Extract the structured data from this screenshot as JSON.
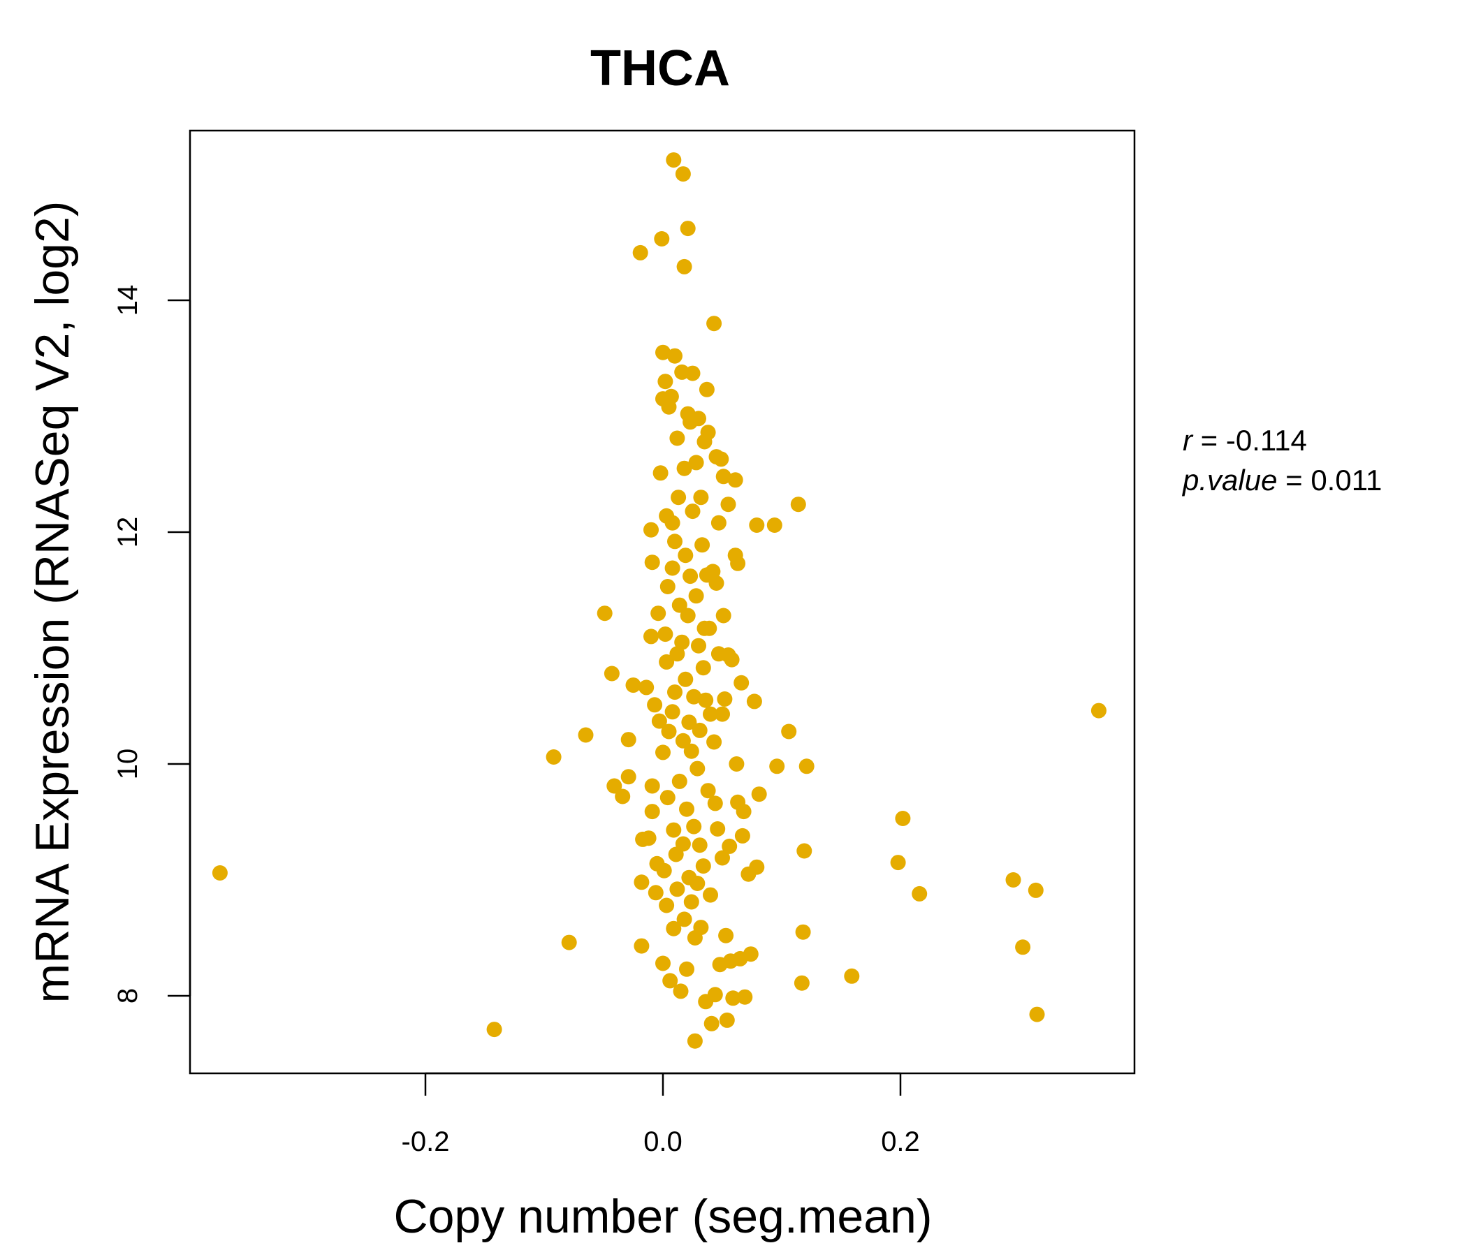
{
  "chart_data": {
    "type": "scatter",
    "title": "THCA",
    "xlabel": "Copy number (seg.mean)",
    "ylabel": "mRNA Expression (RNASeq V2, log2)",
    "xlim": [
      -0.4,
      0.4
    ],
    "ylim": [
      7.35,
      15.5
    ],
    "xticks": [
      "-0.2",
      "0.0",
      "0.2"
    ],
    "yticks": [
      "8",
      "10",
      "12",
      "14"
    ],
    "stats": {
      "r_label": "r",
      "r_value": "-0.114",
      "p_label": "p.value",
      "p_value": "0.011"
    },
    "colors": {
      "points": "#E5AC00",
      "title": "#E5AC00",
      "axis": "#000000"
    },
    "grid": false,
    "legend": "none",
    "points": [
      [
        -0.373,
        9.06
      ],
      [
        -0.142,
        7.71
      ],
      [
        -0.092,
        10.06
      ],
      [
        -0.079,
        8.46
      ],
      [
        -0.065,
        10.25
      ],
      [
        -0.049,
        11.3
      ],
      [
        -0.043,
        10.78
      ],
      [
        -0.041,
        9.81
      ],
      [
        -0.034,
        9.72
      ],
      [
        -0.029,
        9.89
      ],
      [
        -0.029,
        10.21
      ],
      [
        -0.025,
        10.68
      ],
      [
        -0.019,
        14.41
      ],
      [
        -0.018,
        8.98
      ],
      [
        -0.018,
        8.43
      ],
      [
        -0.017,
        9.35
      ],
      [
        -0.014,
        10.66
      ],
      [
        -0.012,
        9.36
      ],
      [
        -0.01,
        11.1
      ],
      [
        -0.01,
        12.02
      ],
      [
        -0.009,
        11.74
      ],
      [
        -0.009,
        9.81
      ],
      [
        -0.009,
        9.59
      ],
      [
        -0.007,
        10.51
      ],
      [
        -0.006,
        8.89
      ],
      [
        -0.005,
        9.14
      ],
      [
        -0.004,
        11.3
      ],
      [
        -0.003,
        10.37
      ],
      [
        -0.002,
        12.51
      ],
      [
        -0.001,
        14.53
      ],
      [
        0.0,
        13.55
      ],
      [
        0.0,
        13.15
      ],
      [
        0.0,
        10.1
      ],
      [
        0.0,
        8.28
      ],
      [
        0.001,
        9.08
      ],
      [
        0.002,
        13.3
      ],
      [
        0.002,
        11.12
      ],
      [
        0.003,
        12.14
      ],
      [
        0.003,
        10.88
      ],
      [
        0.003,
        8.78
      ],
      [
        0.004,
        11.53
      ],
      [
        0.004,
        9.71
      ],
      [
        0.005,
        13.08
      ],
      [
        0.005,
        10.28
      ],
      [
        0.006,
        8.13
      ],
      [
        0.007,
        13.17
      ],
      [
        0.008,
        12.08
      ],
      [
        0.008,
        11.69
      ],
      [
        0.008,
        10.45
      ],
      [
        0.009,
        15.21
      ],
      [
        0.009,
        9.43
      ],
      [
        0.009,
        8.58
      ],
      [
        0.01,
        13.52
      ],
      [
        0.01,
        11.92
      ],
      [
        0.01,
        10.62
      ],
      [
        0.011,
        9.22
      ],
      [
        0.012,
        12.81
      ],
      [
        0.012,
        10.95
      ],
      [
        0.012,
        8.92
      ],
      [
        0.013,
        12.3
      ],
      [
        0.014,
        11.37
      ],
      [
        0.014,
        9.85
      ],
      [
        0.015,
        8.04
      ],
      [
        0.016,
        13.38
      ],
      [
        0.016,
        11.05
      ],
      [
        0.017,
        15.09
      ],
      [
        0.017,
        10.2
      ],
      [
        0.017,
        9.31
      ],
      [
        0.018,
        14.29
      ],
      [
        0.018,
        12.55
      ],
      [
        0.018,
        8.66
      ],
      [
        0.019,
        11.8
      ],
      [
        0.019,
        10.73
      ],
      [
        0.02,
        9.61
      ],
      [
        0.02,
        8.23
      ],
      [
        0.021,
        14.62
      ],
      [
        0.021,
        13.02
      ],
      [
        0.021,
        11.28
      ],
      [
        0.022,
        10.36
      ],
      [
        0.022,
        9.02
      ],
      [
        0.023,
        12.95
      ],
      [
        0.023,
        11.62
      ],
      [
        0.024,
        10.11
      ],
      [
        0.024,
        8.81
      ],
      [
        0.025,
        13.37
      ],
      [
        0.025,
        12.18
      ],
      [
        0.026,
        10.58
      ],
      [
        0.026,
        9.46
      ],
      [
        0.027,
        8.5
      ],
      [
        0.027,
        7.61
      ],
      [
        0.028,
        12.6
      ],
      [
        0.028,
        11.45
      ],
      [
        0.029,
        9.96
      ],
      [
        0.029,
        8.97
      ],
      [
        0.03,
        12.98
      ],
      [
        0.03,
        11.02
      ],
      [
        0.031,
        10.29
      ],
      [
        0.031,
        9.3
      ],
      [
        0.032,
        12.3
      ],
      [
        0.032,
        8.59
      ],
      [
        0.033,
        11.89
      ],
      [
        0.034,
        10.83
      ],
      [
        0.034,
        9.12
      ],
      [
        0.035,
        12.78
      ],
      [
        0.035,
        11.17
      ],
      [
        0.036,
        10.55
      ],
      [
        0.036,
        7.95
      ],
      [
        0.037,
        13.23
      ],
      [
        0.037,
        11.63
      ],
      [
        0.038,
        12.86
      ],
      [
        0.038,
        9.77
      ],
      [
        0.039,
        11.17
      ],
      [
        0.04,
        10.43
      ],
      [
        0.04,
        8.87
      ],
      [
        0.041,
        7.76
      ],
      [
        0.042,
        11.66
      ],
      [
        0.043,
        13.8
      ],
      [
        0.043,
        10.19
      ],
      [
        0.044,
        9.66
      ],
      [
        0.044,
        8.01
      ],
      [
        0.045,
        12.65
      ],
      [
        0.045,
        11.56
      ],
      [
        0.046,
        9.44
      ],
      [
        0.047,
        12.08
      ],
      [
        0.047,
        10.95
      ],
      [
        0.048,
        8.27
      ],
      [
        0.049,
        12.63
      ],
      [
        0.05,
        10.43
      ],
      [
        0.05,
        9.19
      ],
      [
        0.051,
        12.48
      ],
      [
        0.051,
        11.28
      ],
      [
        0.052,
        10.56
      ],
      [
        0.053,
        8.52
      ],
      [
        0.054,
        7.79
      ],
      [
        0.055,
        12.24
      ],
      [
        0.055,
        10.94
      ],
      [
        0.056,
        9.29
      ],
      [
        0.057,
        8.3
      ],
      [
        0.058,
        10.9
      ],
      [
        0.059,
        7.98
      ],
      [
        0.061,
        11.8
      ],
      [
        0.061,
        12.45
      ],
      [
        0.062,
        10.0
      ],
      [
        0.063,
        11.73
      ],
      [
        0.063,
        9.67
      ],
      [
        0.065,
        8.32
      ],
      [
        0.066,
        10.7
      ],
      [
        0.067,
        9.38
      ],
      [
        0.068,
        9.59
      ],
      [
        0.069,
        7.99
      ],
      [
        0.072,
        9.05
      ],
      [
        0.074,
        8.36
      ],
      [
        0.077,
        10.54
      ],
      [
        0.079,
        9.11
      ],
      [
        0.079,
        12.06
      ],
      [
        0.081,
        9.74
      ],
      [
        0.094,
        12.06
      ],
      [
        0.096,
        9.98
      ],
      [
        0.106,
        10.28
      ],
      [
        0.114,
        12.24
      ],
      [
        0.117,
        8.11
      ],
      [
        0.118,
        8.55
      ],
      [
        0.119,
        9.25
      ],
      [
        0.121,
        9.98
      ],
      [
        0.159,
        8.17
      ],
      [
        0.198,
        9.15
      ],
      [
        0.202,
        9.53
      ],
      [
        0.216,
        8.88
      ],
      [
        0.295,
        9.0
      ],
      [
        0.303,
        8.42
      ],
      [
        0.314,
        8.91
      ],
      [
        0.315,
        7.84
      ],
      [
        0.367,
        10.46
      ]
    ]
  }
}
